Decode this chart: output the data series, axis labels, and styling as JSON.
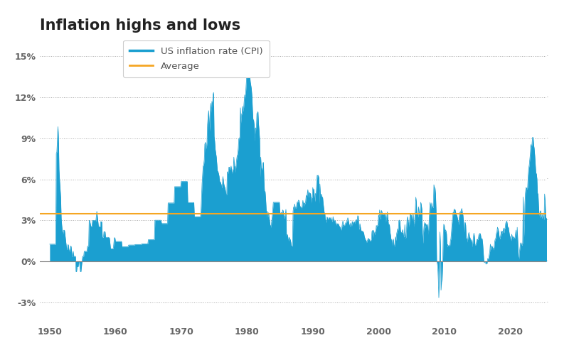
{
  "title": "Inflation highs and lows",
  "line_color": "#1b9fd0",
  "fill_color": "#1b9fd0",
  "avg_color": "#f5a623",
  "avg_value": 3.5,
  "background_color": "#ffffff",
  "grid_color": "#aaaaaa",
  "ylim": [
    -4.5,
    16.5
  ],
  "yticks": [
    -3,
    0,
    3,
    6,
    9,
    12,
    15
  ],
  "ytick_labels": [
    "-3%",
    "0%",
    "3%",
    "6%",
    "9%",
    "12%",
    "15%"
  ],
  "xlim": [
    1948.5,
    2025.5
  ],
  "title_fontsize": 15,
  "legend_labels": [
    "US inflation rate (CPI)",
    "Average"
  ],
  "monthly_cpi": [
    1.26,
    1.26,
    1.26,
    1.26,
    1.26,
    1.26,
    1.26,
    1.26,
    1.26,
    1.26,
    1.26,
    1.26,
    7.88,
    8.0,
    8.8,
    9.84,
    9.06,
    6.69,
    5.93,
    5.33,
    4.67,
    3.16,
    2.63,
    2.22,
    1.92,
    2.28,
    2.28,
    2.28,
    1.93,
    1.57,
    1.22,
    0.87,
    0.87,
    1.22,
    1.22,
    0.87,
    0.75,
    0.75,
    1.11,
    1.11,
    0.74,
    0.37,
    0.37,
    0.74,
    0.37,
    0.37,
    0.37,
    0.37,
    -0.74,
    -0.74,
    -0.37,
    -0.37,
    -0.37,
    0.0,
    0.0,
    -0.37,
    -0.74,
    -0.74,
    -0.37,
    0.0,
    0.37,
    0.37,
    0.37,
    0.74,
    0.74,
    0.74,
    0.74,
    0.74,
    0.74,
    1.11,
    1.11,
    1.11,
    2.99,
    2.99,
    2.78,
    2.56,
    2.56,
    2.56,
    2.99,
    2.99,
    2.99,
    2.99,
    2.99,
    2.99,
    2.9,
    3.28,
    3.66,
    3.28,
    2.9,
    2.53,
    2.53,
    2.53,
    2.53,
    2.9,
    2.9,
    2.9,
    1.76,
    1.76,
    1.76,
    2.17,
    2.17,
    2.17,
    1.76,
    1.76,
    1.76,
    1.76,
    1.76,
    1.76,
    1.73,
    1.73,
    1.33,
    0.93,
    0.93,
    0.93,
    0.93,
    0.93,
    0.93,
    1.33,
    1.73,
    1.73,
    1.46,
    1.46,
    1.46,
    1.46,
    1.46,
    1.46,
    1.46,
    1.46,
    1.46,
    1.46,
    1.46,
    1.46,
    1.07,
    1.07,
    1.07,
    1.07,
    1.07,
    1.07,
    1.07,
    1.07,
    1.07,
    1.07,
    1.07,
    1.07,
    1.2,
    1.2,
    1.2,
    1.2,
    1.2,
    1.2,
    1.2,
    1.2,
    1.2,
    1.2,
    1.2,
    1.2,
    1.24,
    1.24,
    1.24,
    1.24,
    1.24,
    1.24,
    1.24,
    1.24,
    1.24,
    1.24,
    1.24,
    1.24,
    1.28,
    1.28,
    1.28,
    1.28,
    1.28,
    1.28,
    1.28,
    1.28,
    1.28,
    1.28,
    1.28,
    1.28,
    1.59,
    1.59,
    1.59,
    1.59,
    1.59,
    1.59,
    1.59,
    1.59,
    1.59,
    1.59,
    1.59,
    1.59,
    3.01,
    3.01,
    3.01,
    3.01,
    3.01,
    3.01,
    3.01,
    3.01,
    3.01,
    3.01,
    3.01,
    3.01,
    2.77,
    2.77,
    2.77,
    2.77,
    2.77,
    2.77,
    2.77,
    2.77,
    2.77,
    2.77,
    2.77,
    2.77,
    4.27,
    4.27,
    4.27,
    4.27,
    4.27,
    4.27,
    4.27,
    4.27,
    4.27,
    4.27,
    4.27,
    4.27,
    5.46,
    5.46,
    5.46,
    5.46,
    5.46,
    5.46,
    5.46,
    5.46,
    5.46,
    5.46,
    5.46,
    5.46,
    5.84,
    5.84,
    5.84,
    5.84,
    5.84,
    5.84,
    5.84,
    5.84,
    5.84,
    5.84,
    5.84,
    5.84,
    4.3,
    4.3,
    4.3,
    4.3,
    4.3,
    4.3,
    4.3,
    4.3,
    4.3,
    4.3,
    4.3,
    4.3,
    3.27,
    3.27,
    3.27,
    3.27,
    3.27,
    3.27,
    3.27,
    3.27,
    3.27,
    3.27,
    3.27,
    3.27,
    3.65,
    4.65,
    5.69,
    6.36,
    6.96,
    7.06,
    7.42,
    8.55,
    8.7,
    8.32,
    8.25,
    8.71,
    10.02,
    10.57,
    11.01,
    10.24,
    9.5,
    10.92,
    11.55,
    10.86,
    11.69,
    11.35,
    12.2,
    12.34,
    9.14,
    8.78,
    8.19,
    7.9,
    7.63,
    7.11,
    6.61,
    6.57,
    6.42,
    6.24,
    5.84,
    5.82,
    5.74,
    5.6,
    5.36,
    5.57,
    6.2,
    5.87,
    5.6,
    5.46,
    5.34,
    5.08,
    4.88,
    4.86,
    6.5,
    6.56,
    6.4,
    6.89,
    6.89,
    6.69,
    6.78,
    6.97,
    6.52,
    6.42,
    6.71,
    6.7,
    7.62,
    6.84,
    6.94,
    6.49,
    7.04,
    7.41,
    7.71,
    7.82,
    8.25,
    8.93,
    9.03,
    9.0,
    11.22,
    10.1,
    10.71,
    10.85,
    11.33,
    10.94,
    11.26,
    11.82,
    12.17,
    11.95,
    12.6,
    13.29,
    13.91,
    14.76,
    14.76,
    14.68,
    14.41,
    13.58,
    13.11,
    12.87,
    12.6,
    12.06,
    11.05,
    10.32,
    10.35,
    10.0,
    8.77,
    9.7,
    9.76,
    9.58,
    10.8,
    10.83,
    10.94,
    10.08,
    9.58,
    8.92,
    6.16,
    7.62,
    6.78,
    6.78,
    6.68,
    7.19,
    7.24,
    5.85,
    5.02,
    5.12,
    4.59,
    3.83,
    3.21,
    3.68,
    3.23,
    3.56,
    3.36,
    3.0,
    2.68,
    2.6,
    2.48,
    2.94,
    3.27,
    3.79,
    4.32,
    4.32,
    4.32,
    4.32,
    4.32,
    4.32,
    4.32,
    4.32,
    4.32,
    4.32,
    4.32,
    4.32,
    3.56,
    3.46,
    3.56,
    3.56,
    3.5,
    3.76,
    3.71,
    3.37,
    3.14,
    3.23,
    3.46,
    3.8,
    1.86,
    1.95,
    1.95,
    1.62,
    1.49,
    1.77,
    1.63,
    1.6,
    1.4,
    1.14,
    1.13,
    1.1,
    3.65,
    3.98,
    3.78,
    4.2,
    3.91,
    3.91,
    3.91,
    4.26,
    4.35,
    4.35,
    4.48,
    4.43,
    4.14,
    4.01,
    3.93,
    3.94,
    3.81,
    4.18,
    4.46,
    4.02,
    4.27,
    4.26,
    4.2,
    4.39,
    4.82,
    4.67,
    4.96,
    5.24,
    4.65,
    5.01,
    5.02,
    4.97,
    4.96,
    4.26,
    4.64,
    4.65,
    5.4,
    5.14,
    5.28,
    4.73,
    4.36,
    4.97,
    4.82,
    5.62,
    6.29,
    6.25,
    6.29,
    6.11,
    4.23,
    5.66,
    4.74,
    4.9,
    4.89,
    4.7,
    4.68,
    4.24,
    3.87,
    3.54,
    3.53,
    3.06,
    3.03,
    2.83,
    3.25,
    3.18,
    3.03,
    3.12,
    3.21,
    3.16,
    3.06,
    3.22,
    3.07,
    2.9,
    2.95,
    3.27,
    3.04,
    3.04,
    2.78,
    2.99,
    2.78,
    2.65,
    2.75,
    2.76,
    2.69,
    2.75,
    2.61,
    2.52,
    2.51,
    2.35,
    2.29,
    2.5,
    2.77,
    2.96,
    2.54,
    2.65,
    2.65,
    2.68,
    2.81,
    2.86,
    2.88,
    3.07,
    3.19,
    2.97,
    2.76,
    2.62,
    2.54,
    2.81,
    2.61,
    2.54,
    2.93,
    2.72,
    2.85,
    2.86,
    2.9,
    2.75,
    2.95,
    3.04,
    3.04,
    3.0,
    3.34,
    3.32,
    2.34,
    2.42,
    2.76,
    2.5,
    2.24,
    2.24,
    2.19,
    2.22,
    2.15,
    2.08,
    1.83,
    1.71,
    1.55,
    1.57,
    1.39,
    1.43,
    1.55,
    1.68,
    1.67,
    1.62,
    1.49,
    1.49,
    1.54,
    1.61,
    2.19,
    2.27,
    1.73,
    2.28,
    2.09,
    1.96,
    2.13,
    2.26,
    2.63,
    2.56,
    2.62,
    2.68,
    3.38,
    3.22,
    3.76,
    3.07,
    3.19,
    3.73,
    3.66,
    3.41,
    3.45,
    3.45,
    3.45,
    3.39,
    2.83,
    3.53,
    2.92,
    3.27,
    3.62,
    3.25,
    2.72,
    2.72,
    2.65,
    2.13,
    1.9,
    1.55,
    1.59,
    1.14,
    1.48,
    1.64,
    1.18,
    1.07,
    1.46,
    1.8,
    1.51,
    2.02,
    2.2,
    2.38,
    2.27,
    2.97,
    3.02,
    2.98,
    2.26,
    2.11,
    2.11,
    2.16,
    2.32,
    2.04,
    1.77,
    1.88,
    2.68,
    1.69,
    1.74,
    2.29,
    3.05,
    3.27,
    3.0,
    2.65,
    2.54,
    3.19,
    3.52,
    3.26,
    3.39,
    3.01,
    3.15,
    3.51,
    2.8,
    2.53,
    3.17,
    3.64,
    4.69,
    4.35,
    3.46,
    3.42,
    3.23,
    3.99,
    3.6,
    3.39,
    3.55,
    4.32,
    4.15,
    3.82,
    2.06,
    1.31,
    2.05,
    2.54,
    2.85,
    2.42,
    2.78,
    2.57,
    2.69,
    2.69,
    2.36,
    1.97,
    2.76,
    3.54,
    4.31,
    4.08,
    3.84,
    4.28,
    4.03,
    3.94,
    3.94,
    5.6,
    5.37,
    5.37,
    4.94,
    3.73,
    0.09,
    -0.09,
    -0.36,
    -1.28,
    -2.65,
    -0.74,
    2.15,
    1.05,
    -2.1,
    -1.48,
    -1.29,
    -0.18,
    1.84,
    2.72,
    2.63,
    2.14,
    2.31,
    2.24,
    2.02,
    1.05,
    1.24,
    1.15,
    1.14,
    1.17,
    1.07,
    1.48,
    1.64,
    2.11,
    2.68,
    3.16,
    3.57,
    3.56,
    3.84,
    3.63,
    3.77,
    3.53,
    3.39,
    3.36,
    3.16,
    2.93,
    2.68,
    3.16,
    3.57,
    3.6,
    3.63,
    3.77,
    3.87,
    3.53,
    3.39,
    2.96,
    2.07,
    2.68,
    2.87,
    2.65,
    1.7,
    1.66,
    1.41,
    1.69,
    1.99,
    2.12,
    1.76,
    1.74,
    1.46,
    1.59,
    1.47,
    1.06,
    1.36,
    1.75,
    2.07,
    1.84,
    1.18,
    1.2,
    1.24,
    1.5,
    1.62,
    1.58,
    1.66,
    1.95,
    2.0,
    2.06,
    1.99,
    1.7,
    1.66,
    1.66,
    1.32,
    0.76,
    0.12,
    -0.09,
    0.0,
    0.0,
    -0.2,
    -0.04,
    -0.17,
    0.2,
    0.18,
    0.17,
    0.5,
    0.73,
    1.26,
    1.02,
    0.85,
    1.13,
    1.02,
    0.96,
    0.84,
    1.06,
    1.46,
    1.64,
    1.69,
    2.07,
    2.13,
    2.5,
    2.38,
    2.2,
    1.87,
    1.63,
    1.73,
    1.94,
    2.23,
    2.04,
    2.2,
    2.11,
    2.44,
    2.07,
    2.36,
    2.46,
    2.8,
    2.87,
    2.95,
    2.72,
    2.28,
    2.52,
    2.18,
    1.91,
    1.81,
    1.59,
    1.52,
    1.99,
    1.79,
    1.65,
    1.81,
    1.75,
    1.71,
    1.71,
    2.05,
    2.29,
    1.23,
    2.49,
    1.54,
    0.33,
    0.12,
    0.64,
    0.99,
    1.31,
    1.37,
    1.18,
    1.17,
    1.36,
    4.7,
    1.68,
    2.62,
    4.16,
    4.99,
    5.39,
    5.37,
    5.25,
    5.39,
    6.22,
    6.81,
    7.04,
    7.48,
    7.87,
    8.54,
    8.26,
    8.58,
    9.06,
    9.06,
    8.52,
    8.26,
    7.75,
    7.11,
    6.45,
    6.41,
    6.04,
    4.98,
    4.93,
    4.05,
    3.37,
    3.18,
    3.67,
    3.7,
    3.24,
    3.14,
    3.35,
    3.48,
    3.15,
    3.05,
    4.93,
    4.36,
    3.27,
    3.17,
    3.18,
    3.5,
    3.18,
    3.14,
    3.35
  ],
  "start_year": 1950,
  "start_month": 1
}
